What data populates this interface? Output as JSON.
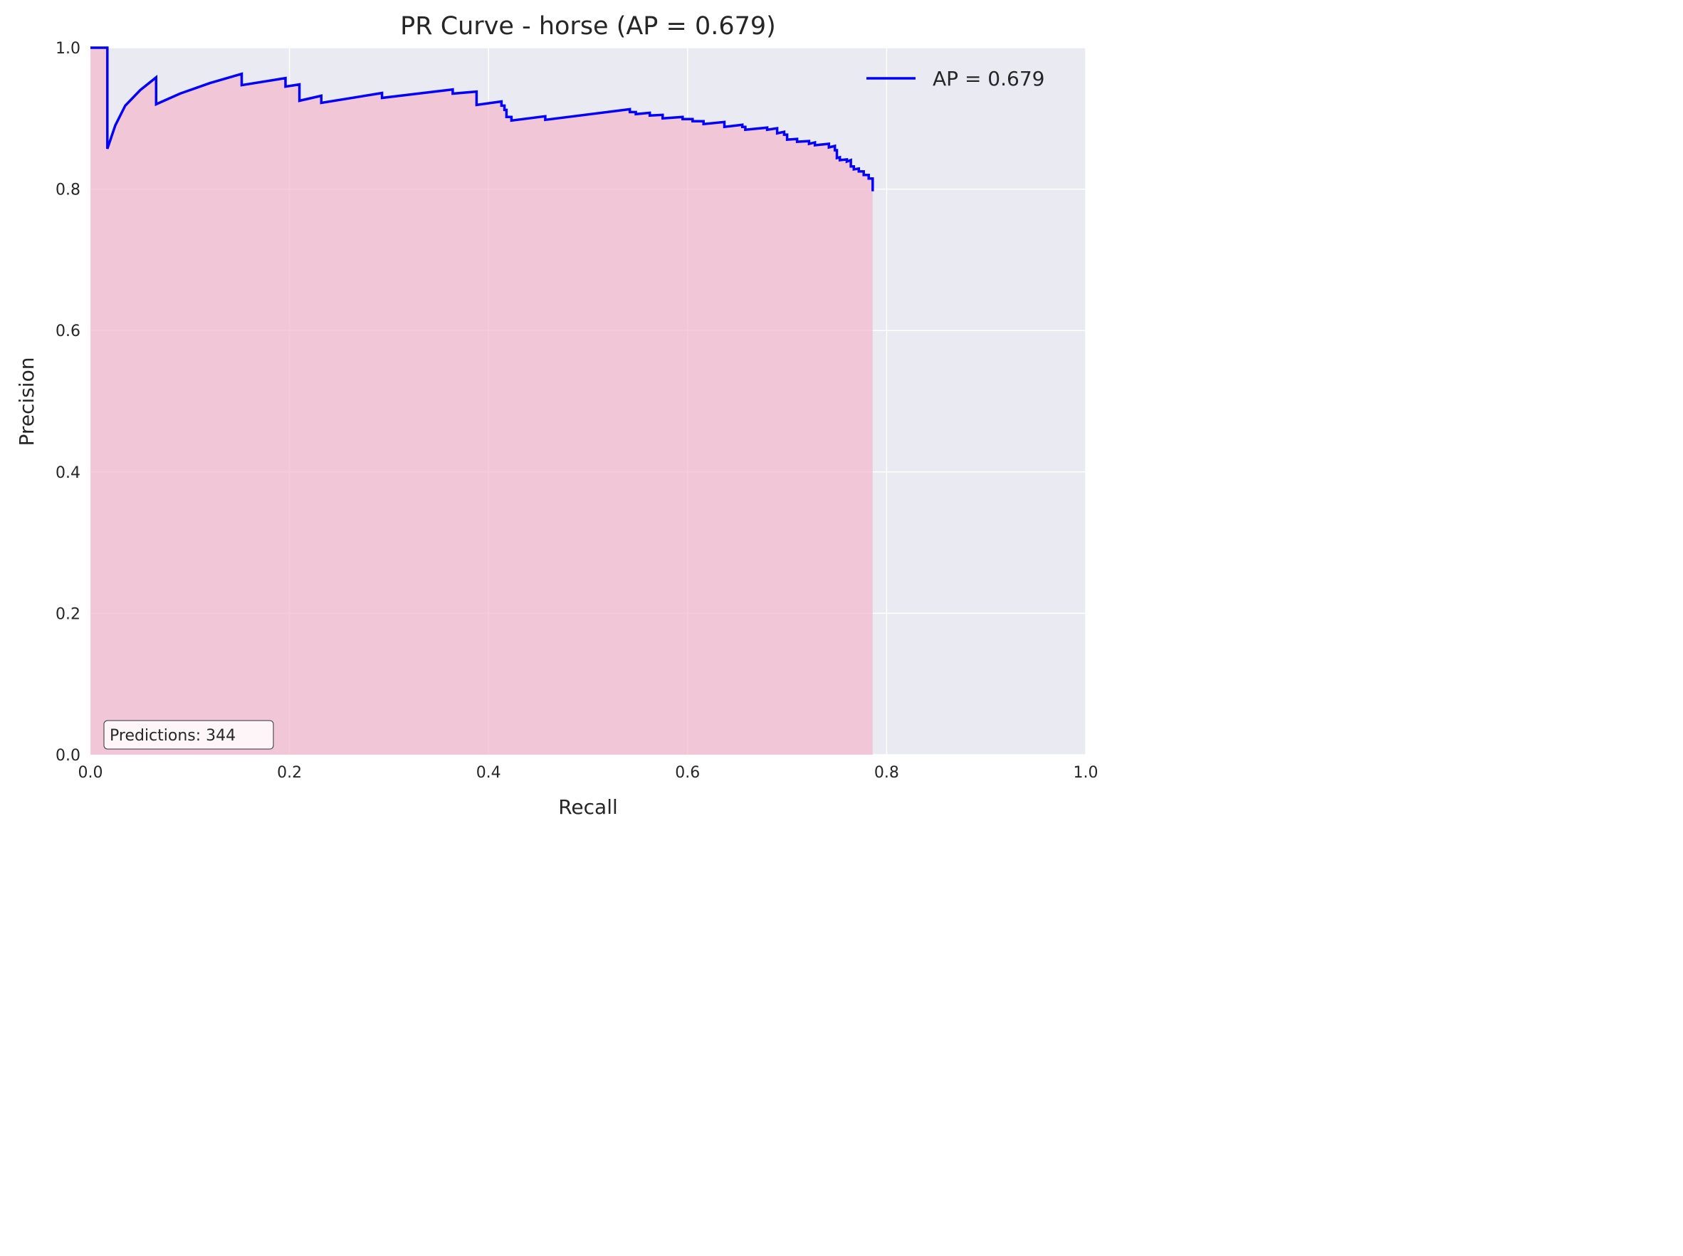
{
  "chart_data": {
    "type": "area",
    "title": "PR Curve - horse (AP = 0.679)",
    "xlabel": "Recall",
    "ylabel": "Precision",
    "xlim": [
      0.0,
      1.0
    ],
    "ylim": [
      0.0,
      1.0
    ],
    "xticks": [
      "0.0",
      "0.2",
      "0.4",
      "0.6",
      "0.8",
      "1.0"
    ],
    "yticks": [
      "0.0",
      "0.2",
      "0.4",
      "0.6",
      "0.8",
      "1.0"
    ],
    "grid": true,
    "legend_position": "upper right",
    "annotation": "Predictions: 344",
    "colors": {
      "line": "#0000ff",
      "fill": "#f4b6cb",
      "background": "#eaeaf2",
      "grid": "#ffffff"
    },
    "series": [
      {
        "name": "AP = 0.679",
        "points": [
          [
            0.0,
            1.0
          ],
          [
            0.017,
            1.0
          ],
          [
            0.017,
            0.857
          ],
          [
            0.025,
            0.89
          ],
          [
            0.035,
            0.918
          ],
          [
            0.05,
            0.94
          ],
          [
            0.066,
            0.958
          ],
          [
            0.066,
            0.92
          ],
          [
            0.09,
            0.935
          ],
          [
            0.12,
            0.95
          ],
          [
            0.152,
            0.963
          ],
          [
            0.152,
            0.947
          ],
          [
            0.196,
            0.957
          ],
          [
            0.196,
            0.945
          ],
          [
            0.21,
            0.948
          ],
          [
            0.21,
            0.925
          ],
          [
            0.232,
            0.932
          ],
          [
            0.232,
            0.922
          ],
          [
            0.293,
            0.936
          ],
          [
            0.293,
            0.929
          ],
          [
            0.364,
            0.941
          ],
          [
            0.364,
            0.935
          ],
          [
            0.388,
            0.938
          ],
          [
            0.388,
            0.919
          ],
          [
            0.413,
            0.924
          ],
          [
            0.413,
            0.918
          ],
          [
            0.416,
            0.918
          ],
          [
            0.416,
            0.912
          ],
          [
            0.418,
            0.912
          ],
          [
            0.418,
            0.902
          ],
          [
            0.423,
            0.902
          ],
          [
            0.423,
            0.897
          ],
          [
            0.457,
            0.903
          ],
          [
            0.457,
            0.898
          ],
          [
            0.542,
            0.913
          ],
          [
            0.542,
            0.909
          ],
          [
            0.548,
            0.909
          ],
          [
            0.548,
            0.906
          ],
          [
            0.562,
            0.908
          ],
          [
            0.562,
            0.904
          ],
          [
            0.575,
            0.905
          ],
          [
            0.575,
            0.9
          ],
          [
            0.595,
            0.902
          ],
          [
            0.595,
            0.899
          ],
          [
            0.605,
            0.899
          ],
          [
            0.605,
            0.896
          ],
          [
            0.616,
            0.896
          ],
          [
            0.616,
            0.892
          ],
          [
            0.637,
            0.895
          ],
          [
            0.637,
            0.888
          ],
          [
            0.655,
            0.891
          ],
          [
            0.655,
            0.888
          ],
          [
            0.658,
            0.888
          ],
          [
            0.658,
            0.884
          ],
          [
            0.68,
            0.887
          ],
          [
            0.68,
            0.884
          ],
          [
            0.69,
            0.886
          ],
          [
            0.69,
            0.879
          ],
          [
            0.697,
            0.881
          ],
          [
            0.697,
            0.877
          ],
          [
            0.7,
            0.877
          ],
          [
            0.7,
            0.87
          ],
          [
            0.71,
            0.871
          ],
          [
            0.71,
            0.867
          ],
          [
            0.722,
            0.868
          ],
          [
            0.722,
            0.864
          ],
          [
            0.728,
            0.866
          ],
          [
            0.728,
            0.862
          ],
          [
            0.742,
            0.864
          ],
          [
            0.742,
            0.859
          ],
          [
            0.748,
            0.861
          ],
          [
            0.748,
            0.855
          ],
          [
            0.75,
            0.855
          ],
          [
            0.75,
            0.844
          ],
          [
            0.753,
            0.845
          ],
          [
            0.753,
            0.841
          ],
          [
            0.76,
            0.842
          ],
          [
            0.76,
            0.839
          ],
          [
            0.764,
            0.841
          ],
          [
            0.764,
            0.832
          ],
          [
            0.767,
            0.832
          ],
          [
            0.767,
            0.828
          ],
          [
            0.772,
            0.829
          ],
          [
            0.772,
            0.825
          ],
          [
            0.777,
            0.825
          ],
          [
            0.777,
            0.82
          ],
          [
            0.782,
            0.82
          ],
          [
            0.782,
            0.815
          ],
          [
            0.786,
            0.815
          ],
          [
            0.786,
            0.797
          ]
        ]
      }
    ]
  }
}
